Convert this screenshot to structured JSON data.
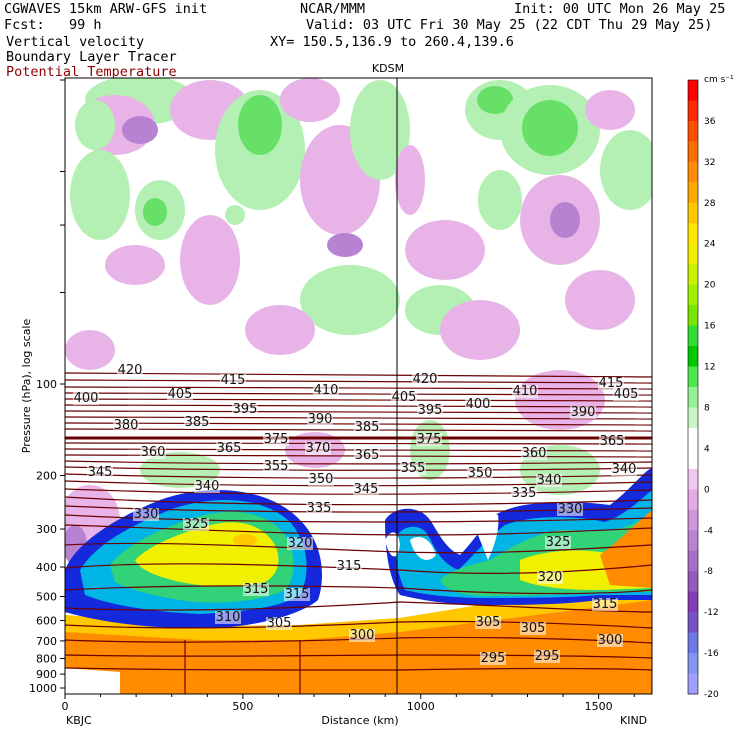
{
  "header": {
    "model": "CGWAVES 15km ARW-GFS init",
    "fcst_label": "Fcst:",
    "fcst_value": "99 h",
    "field1": "Vertical velocity",
    "field2": "Boundary Layer Tracer",
    "field3": "Potential Temperature",
    "org": "NCAR/MMM",
    "init": "Init: 00 UTC Mon 26 May 25",
    "valid": "Valid: 03 UTC Fri 30 May 25 (22 CDT Thu 29 May 25)",
    "xy": "XY= 150.5,136.9 to 260.4,139.6",
    "station_mid": "KDSM",
    "station_left": "KBJC",
    "station_right": "KIND"
  },
  "colors": {
    "theta": "#6b0000",
    "red_text": "#8b0000",
    "tracer_blue": "#1428dc",
    "tracer_mid": "#00b4e6",
    "tracer_green": "#32d278",
    "tracer_yellow": "#f0f000",
    "ground_orange": "#ff8c00",
    "up_light": "#b4f0b4",
    "up_mid": "#66e066",
    "down_light": "#e8b4e8",
    "down_mid": "#b882d2",
    "down_dark": "#8c50aa"
  },
  "chart_data": {
    "type": "heatmap",
    "xlabel": "Distance (km)",
    "ylabel": "Pressure (hPa), log scale",
    "x_ticks": [
      0,
      500,
      1000,
      1500
    ],
    "xlim": [
      0,
      1650
    ],
    "y_ticks": [
      100,
      200,
      300,
      400,
      500,
      600,
      700,
      800,
      900,
      1000
    ],
    "y_scale": "log",
    "colorbar": {
      "unit": "cm s⁻¹",
      "ticks": [
        36,
        32,
        28,
        24,
        20,
        16,
        12,
        8,
        4,
        0,
        -4,
        -8,
        -12,
        -16,
        -20
      ],
      "colors": [
        "#ff0000",
        "#ff2800",
        "#ff5000",
        "#ff6e00",
        "#ff8c00",
        "#ffaa00",
        "#ffc800",
        "#ffe600",
        "#f0f000",
        "#c8f000",
        "#a0f000",
        "#78e600",
        "#32dc32",
        "#00c800",
        "#50e650",
        "#96f096",
        "#c8f5c8",
        "#ffffff",
        "#ffffff",
        "#f0c8f0",
        "#e6aae6",
        "#d296dc",
        "#be82d2",
        "#aa6ec8",
        "#965abe",
        "#823cb4",
        "#7850c8",
        "#6e78e6",
        "#8296f0",
        "#a0a0ff"
      ]
    },
    "theta_labels": [
      {
        "v": "420",
        "x": 130,
        "y": 374
      },
      {
        "v": "415",
        "x": 233,
        "y": 384
      },
      {
        "v": "410",
        "x": 326,
        "y": 394
      },
      {
        "v": "405",
        "x": 404,
        "y": 401
      },
      {
        "v": "420",
        "x": 425,
        "y": 383
      },
      {
        "v": "410",
        "x": 525,
        "y": 395
      },
      {
        "v": "415",
        "x": 611,
        "y": 387
      },
      {
        "v": "405",
        "x": 626,
        "y": 398
      },
      {
        "v": "400",
        "x": 86,
        "y": 402
      },
      {
        "v": "405",
        "x": 180,
        "y": 398
      },
      {
        "v": "395",
        "x": 245,
        "y": 413
      },
      {
        "v": "390",
        "x": 320,
        "y": 423
      },
      {
        "v": "395",
        "x": 430,
        "y": 414
      },
      {
        "v": "400",
        "x": 478,
        "y": 408
      },
      {
        "v": "390",
        "x": 583,
        "y": 416
      },
      {
        "v": "380",
        "x": 126,
        "y": 429
      },
      {
        "v": "385",
        "x": 197,
        "y": 426
      },
      {
        "v": "385",
        "x": 367,
        "y": 431
      },
      {
        "v": "375",
        "x": 276,
        "y": 443
      },
      {
        "v": "370",
        "x": 318,
        "y": 452
      },
      {
        "v": "375",
        "x": 429,
        "y": 443
      },
      {
        "v": "365",
        "x": 612,
        "y": 445
      },
      {
        "v": "360",
        "x": 153,
        "y": 456
      },
      {
        "v": "365",
        "x": 229,
        "y": 452
      },
      {
        "v": "365",
        "x": 367,
        "y": 459
      },
      {
        "v": "360",
        "x": 534,
        "y": 457
      },
      {
        "v": "355",
        "x": 276,
        "y": 470
      },
      {
        "v": "355",
        "x": 413,
        "y": 472
      },
      {
        "v": "350",
        "x": 480,
        "y": 477
      },
      {
        "v": "340",
        "x": 624,
        "y": 473
      },
      {
        "v": "345",
        "x": 100,
        "y": 476
      },
      {
        "v": "350",
        "x": 321,
        "y": 483
      },
      {
        "v": "345",
        "x": 366,
        "y": 493
      },
      {
        "v": "340",
        "x": 207,
        "y": 490
      },
      {
        "v": "340",
        "x": 549,
        "y": 484
      },
      {
        "v": "335",
        "x": 319,
        "y": 512
      },
      {
        "v": "335",
        "x": 524,
        "y": 497
      },
      {
        "v": "330",
        "x": 146,
        "y": 518
      },
      {
        "v": "330",
        "x": 570,
        "y": 513
      },
      {
        "v": "325",
        "x": 196,
        "y": 528
      },
      {
        "v": "325",
        "x": 558,
        "y": 546
      },
      {
        "v": "320",
        "x": 300,
        "y": 547
      },
      {
        "v": "320",
        "x": 550,
        "y": 581
      },
      {
        "v": "315",
        "x": 349,
        "y": 570
      },
      {
        "v": "315",
        "x": 256,
        "y": 593
      },
      {
        "v": "315",
        "x": 297,
        "y": 598
      },
      {
        "v": "315",
        "x": 605,
        "y": 608
      },
      {
        "v": "310",
        "x": 228,
        "y": 621
      },
      {
        "v": "305",
        "x": 279,
        "y": 627
      },
      {
        "v": "305",
        "x": 488,
        "y": 626
      },
      {
        "v": "305",
        "x": 533,
        "y": 632
      },
      {
        "v": "300",
        "x": 362,
        "y": 639
      },
      {
        "v": "300",
        "x": 610,
        "y": 644
      },
      {
        "v": "295",
        "x": 493,
        "y": 662
      },
      {
        "v": "295",
        "x": 547,
        "y": 660
      }
    ]
  }
}
